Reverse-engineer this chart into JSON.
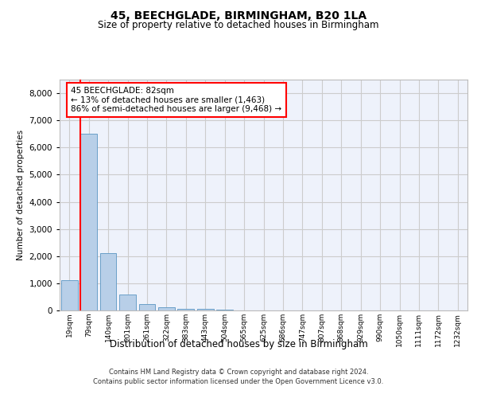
{
  "title1": "45, BEECHGLADE, BIRMINGHAM, B20 1LA",
  "title2": "Size of property relative to detached houses in Birmingham",
  "xlabel": "Distribution of detached houses by size in Birmingham",
  "ylabel": "Number of detached properties",
  "categories": [
    "19sqm",
    "79sqm",
    "140sqm",
    "201sqm",
    "261sqm",
    "322sqm",
    "383sqm",
    "443sqm",
    "504sqm",
    "565sqm",
    "625sqm",
    "686sqm",
    "747sqm",
    "807sqm",
    "868sqm",
    "929sqm",
    "990sqm",
    "1050sqm",
    "1111sqm",
    "1172sqm",
    "1232sqm"
  ],
  "values": [
    1100,
    6500,
    2100,
    580,
    240,
    120,
    70,
    45,
    20,
    10,
    0,
    0,
    0,
    0,
    0,
    0,
    0,
    0,
    0,
    0,
    0
  ],
  "bar_color": "#b8cfe8",
  "bar_edge_color": "#6a9fc8",
  "annotation_text_line1": "45 BEECHGLADE: 82sqm",
  "annotation_text_line2": "← 13% of detached houses are smaller (1,463)",
  "annotation_text_line3": "86% of semi-detached houses are larger (9,468) →",
  "annotation_box_color": "white",
  "annotation_box_edge_color": "red",
  "vline_color": "red",
  "footer1": "Contains HM Land Registry data © Crown copyright and database right 2024.",
  "footer2": "Contains public sector information licensed under the Open Government Licence v3.0.",
  "ylim": [
    0,
    8500
  ],
  "yticks": [
    0,
    1000,
    2000,
    3000,
    4000,
    5000,
    6000,
    7000,
    8000
  ],
  "grid_color": "#cccccc",
  "bg_color": "#eef2fb"
}
